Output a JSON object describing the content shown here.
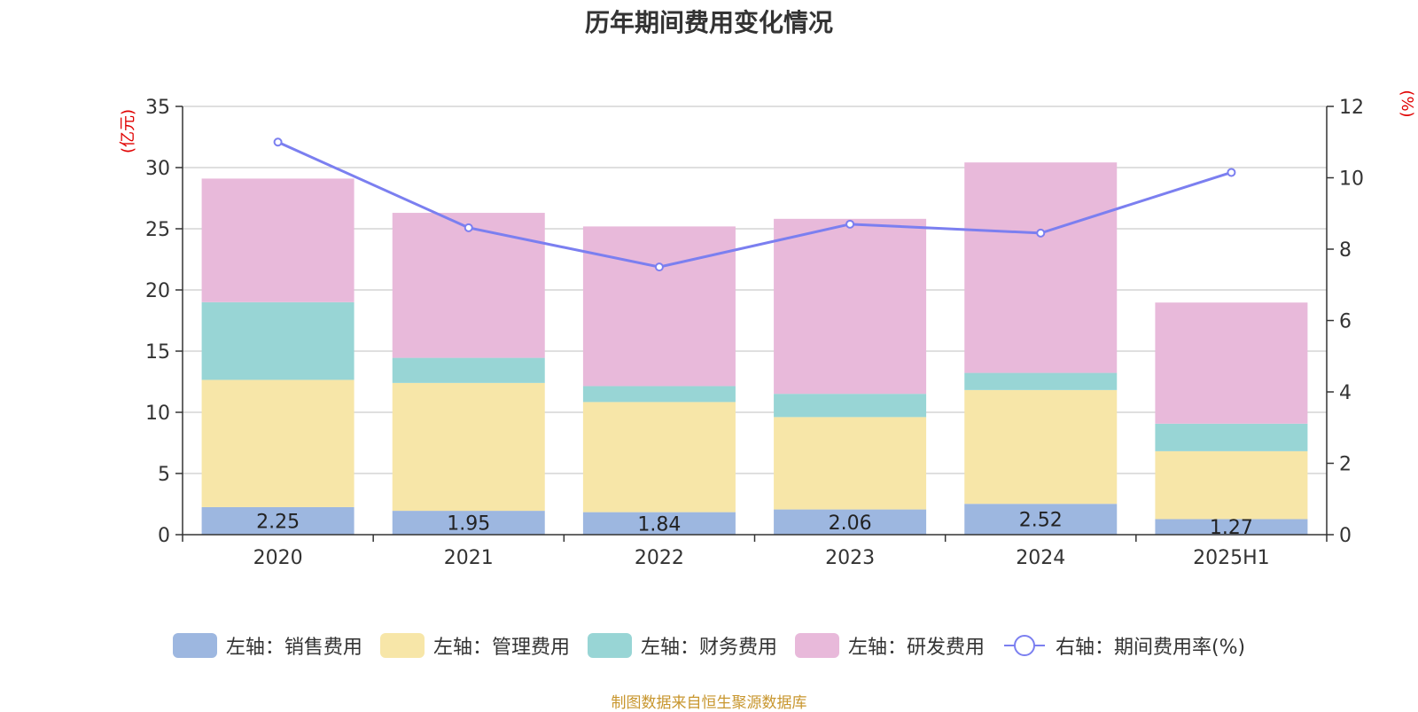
{
  "chart_data": {
    "type": "bar",
    "stacked": true,
    "title": "历年期间费用变化情况",
    "categories": [
      "2020",
      "2021",
      "2022",
      "2023",
      "2024",
      "2025H1"
    ],
    "left_axis": {
      "unit_label": "(亿元)",
      "ylim": [
        0,
        35
      ],
      "ticks": [
        0,
        5,
        10,
        15,
        20,
        25,
        30,
        35
      ]
    },
    "right_axis": {
      "unit_label": "(%)",
      "ylim": [
        0,
        12
      ],
      "ticks": [
        0,
        2,
        4,
        6,
        8,
        10,
        12
      ]
    },
    "series": [
      {
        "name": "左轴：销售费用",
        "axis": "left",
        "color": "#9db7e0",
        "values": [
          2.25,
          1.95,
          1.84,
          2.06,
          2.52,
          1.27
        ],
        "show_labels": true
      },
      {
        "name": "左轴：管理费用",
        "axis": "left",
        "color": "#f7e6a8",
        "values": [
          10.4,
          10.45,
          9.0,
          7.55,
          9.3,
          5.55
        ]
      },
      {
        "name": "左轴：财务费用",
        "axis": "left",
        "color": "#98d5d5",
        "values": [
          6.35,
          2.05,
          1.3,
          1.9,
          1.4,
          2.25
        ]
      },
      {
        "name": "左轴：研发费用",
        "axis": "left",
        "color": "#e8b9da",
        "values": [
          10.1,
          11.85,
          13.05,
          14.3,
          17.2,
          9.9
        ]
      },
      {
        "name": "右轴：期间费用率(%)",
        "axis": "right",
        "type": "line",
        "color": "#7b7ff0",
        "values": [
          11.0,
          8.6,
          7.5,
          8.7,
          8.45,
          10.15
        ]
      }
    ],
    "grid": true,
    "legend_position": "bottom"
  },
  "source_note": "制图数据来自恒生聚源数据库"
}
